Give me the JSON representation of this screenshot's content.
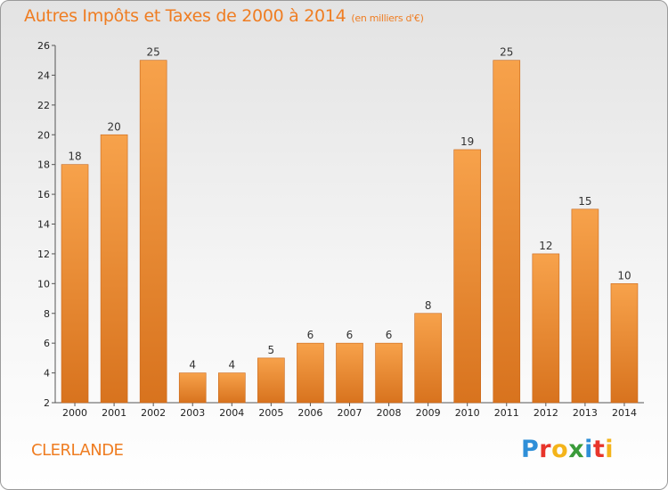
{
  "title": "Autres Impôts et Taxes de 2000 à 2014",
  "subtitle": "(en milliers d'€)",
  "place": "CLERLANDE",
  "logo": {
    "letters": [
      "P",
      "r",
      "o",
      "x",
      "i",
      "t",
      "i"
    ],
    "colors": [
      "#2f8fd8",
      "#e8352b",
      "#f4b41a",
      "#3a9b3a",
      "#2f8fd8",
      "#e8352b",
      "#f4b41a"
    ]
  },
  "colors": {
    "accent": "#ef7d22",
    "bar_top": "#f7a24b",
    "bar_bottom": "#d8731e"
  },
  "chart_data": {
    "type": "bar",
    "title": "Autres Impôts et Taxes de 2000 à 2014",
    "subtitle": "(en milliers d'€)",
    "xlabel": "",
    "ylabel": "",
    "categories": [
      "2000",
      "2001",
      "2002",
      "2003",
      "2004",
      "2005",
      "2006",
      "2007",
      "2008",
      "2009",
      "2010",
      "2011",
      "2012",
      "2013",
      "2014"
    ],
    "values": [
      18,
      20,
      25,
      4,
      4,
      5,
      6,
      6,
      6,
      8,
      19,
      25,
      12,
      15,
      10
    ],
    "ylim": [
      2,
      26
    ],
    "yticks": [
      2,
      4,
      6,
      8,
      10,
      12,
      14,
      16,
      18,
      20,
      22,
      24,
      26
    ],
    "grid": false,
    "legend": "none"
  }
}
